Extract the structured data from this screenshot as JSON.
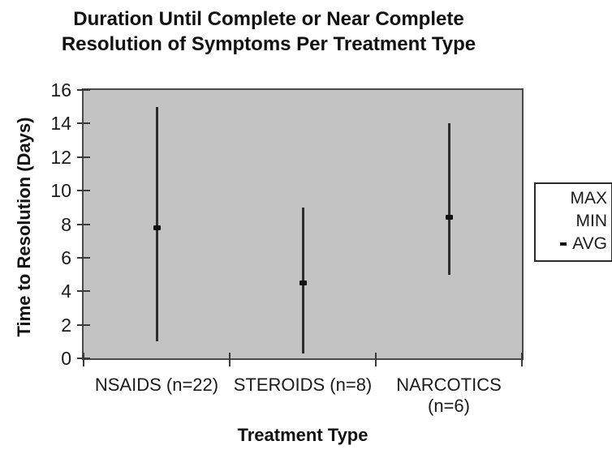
{
  "chart_data": {
    "type": "hilo-range",
    "title": "Duration Until Complete or Near Complete Resolution of Symptoms Per Treatment Type",
    "title_lines": [
      "Duration Until Complete or Near Complete",
      "Resolution of Symptoms Per Treatment Type"
    ],
    "xlabel": "Treatment Type",
    "ylabel": "Time to Resolution (Days)",
    "ylim": [
      0,
      16
    ],
    "ytick_step": 2,
    "yticks": [
      0,
      2,
      4,
      6,
      8,
      10,
      12,
      14,
      16
    ],
    "grid": false,
    "plot_background_color": "#c3c3c3",
    "line_color": "#2d2d2d",
    "legend_position": "right",
    "categories": [
      "NSAIDS (n=22)",
      "STEROIDS (n=8)",
      "NARCOTICS (n=6)"
    ],
    "category_display_lines": [
      [
        "NSAIDS (n=22)"
      ],
      [
        "STEROIDS (n=8)"
      ],
      [
        "NARCOTICS",
        "(n=6)"
      ]
    ],
    "series": [
      {
        "name": "MAX",
        "values": [
          15,
          9,
          14
        ]
      },
      {
        "name": "MIN",
        "values": [
          1,
          0.3,
          5
        ]
      },
      {
        "name": "AVG",
        "values": [
          7.8,
          4.5,
          8.4
        ]
      }
    ],
    "legend": {
      "entries": [
        {
          "label": "MAX",
          "marker": "none"
        },
        {
          "label": "MIN",
          "marker": "none"
        },
        {
          "label": "AVG",
          "marker": "dash"
        }
      ]
    }
  }
}
